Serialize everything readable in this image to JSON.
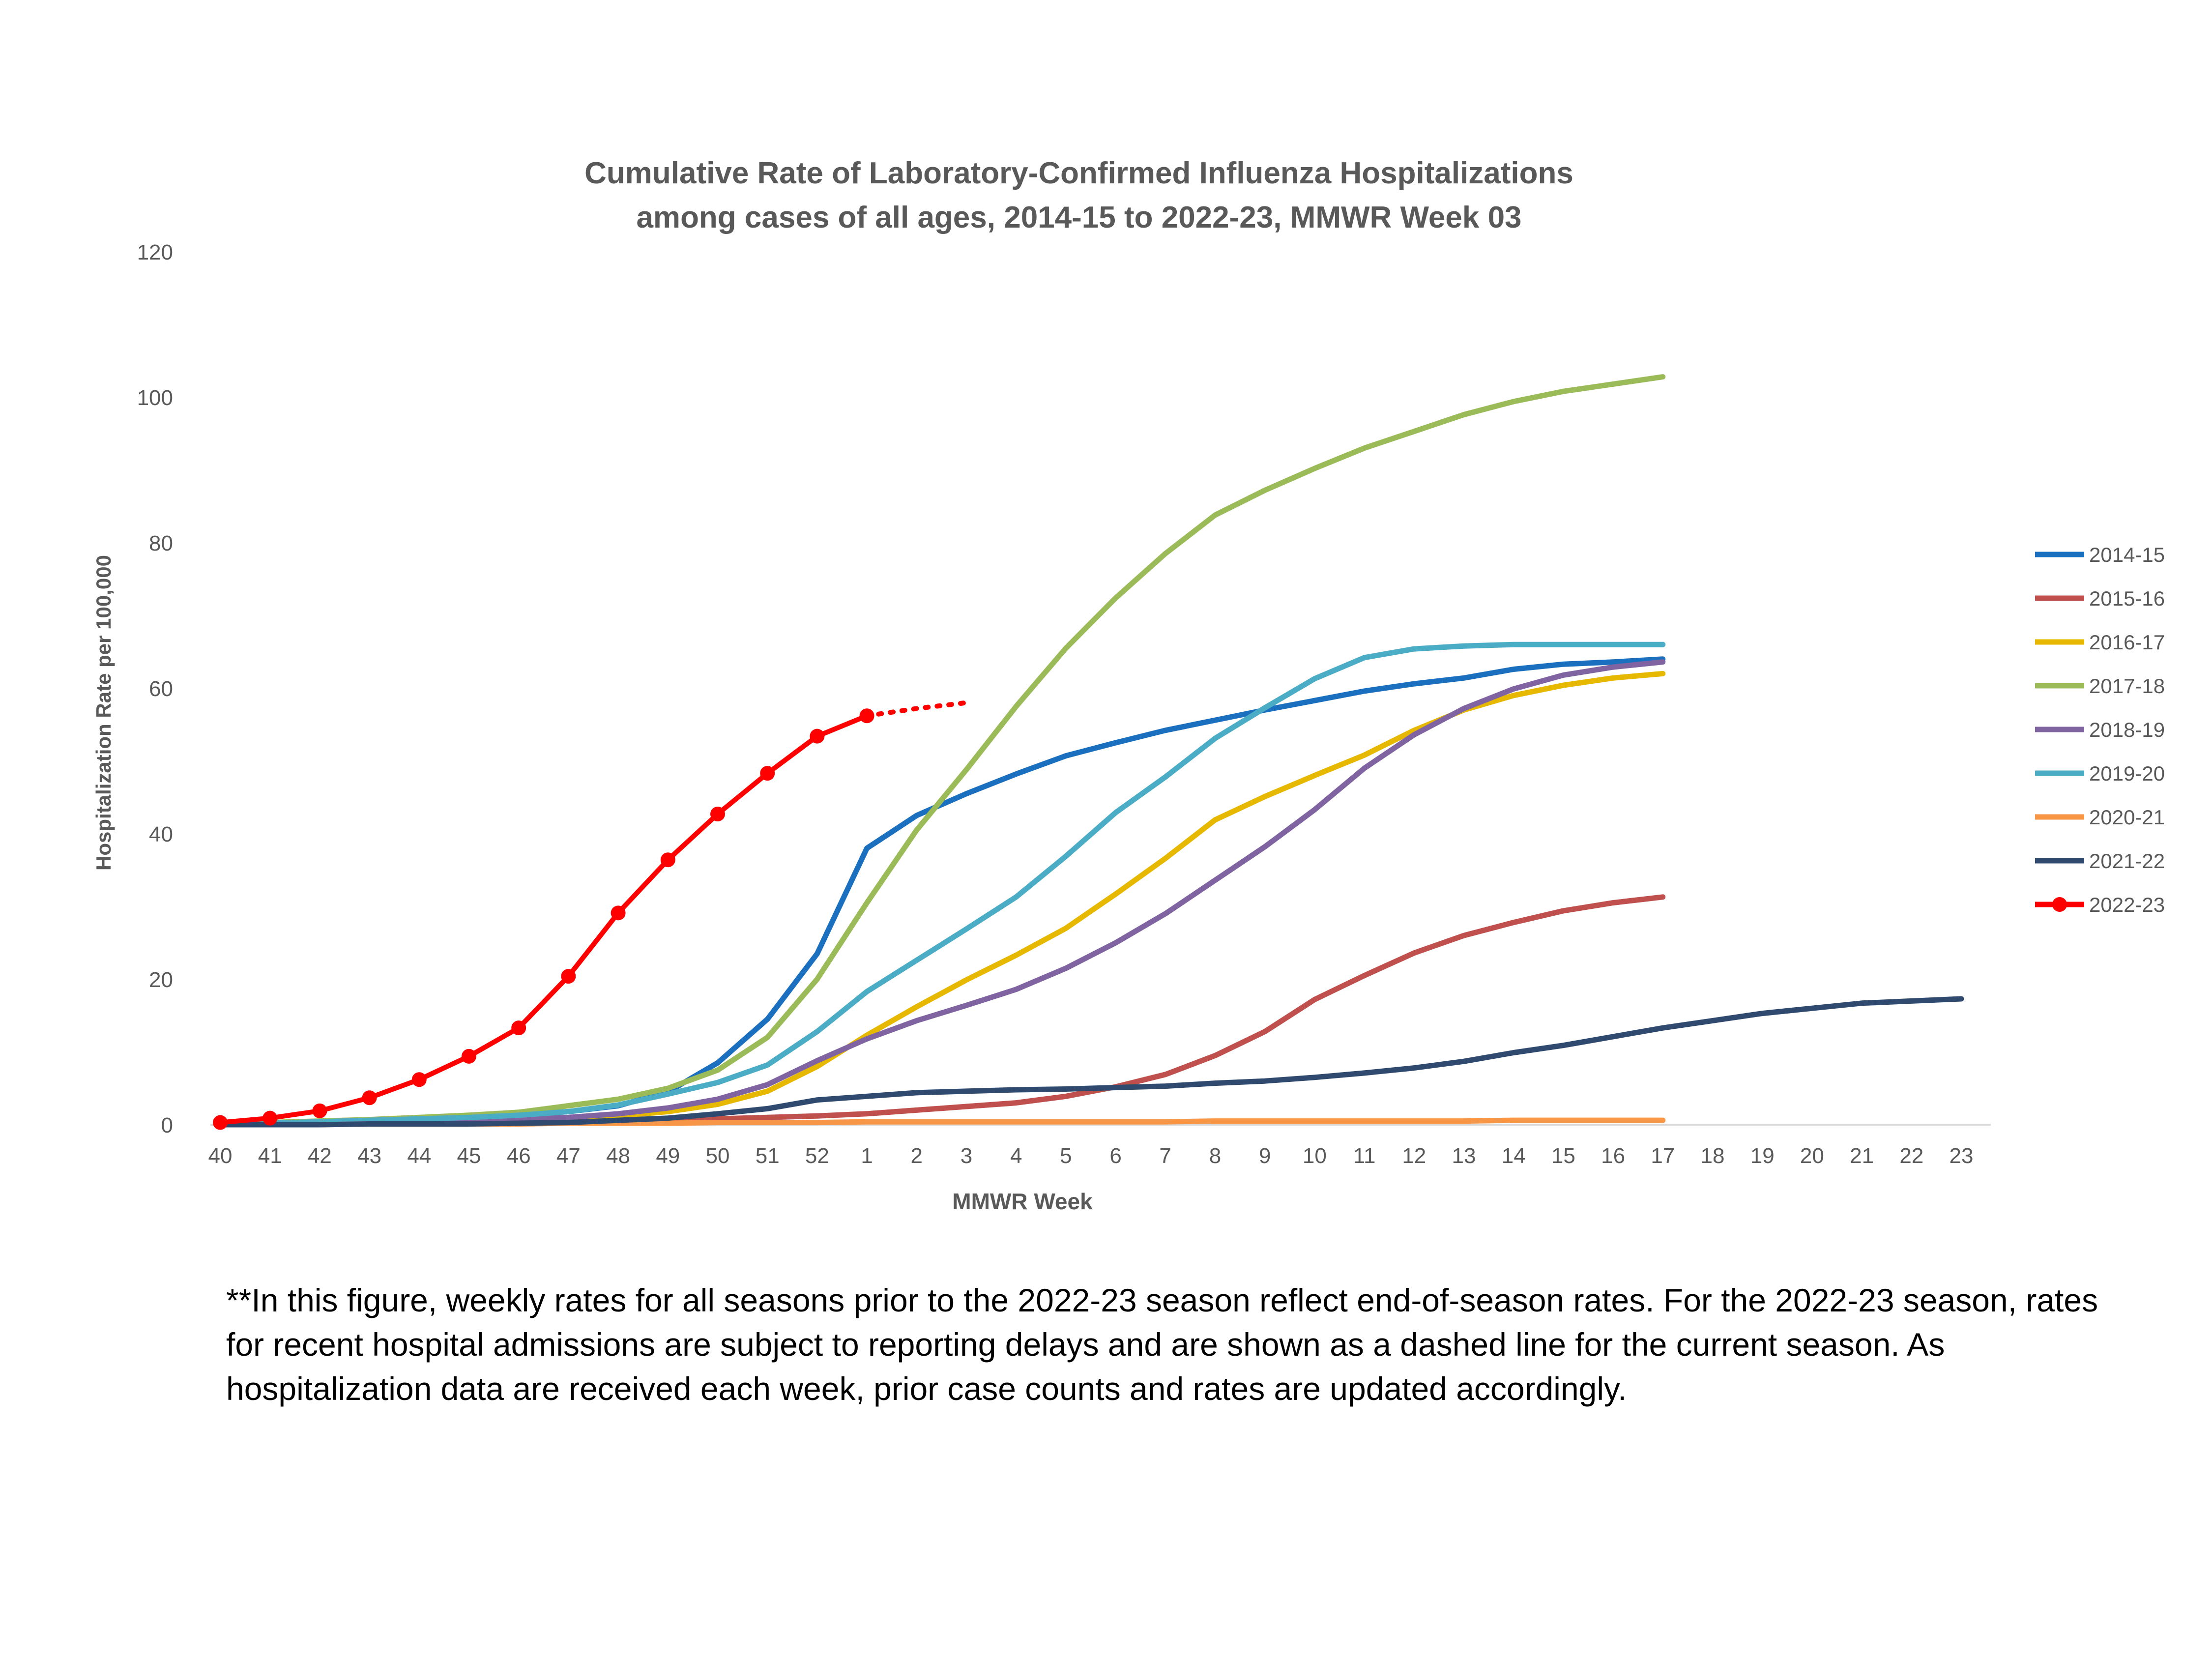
{
  "chart_data": {
    "type": "line",
    "title_lines": [
      "Cumulative Rate of Laboratory-Confirmed Influenza Hospitalizations",
      "among cases of all ages, 2014-15 to 2022-23, MMWR Week 03"
    ],
    "xlabel": "MMWR Week",
    "ylabel": "Hospitalization Rate per 100,000",
    "ylim": [
      0,
      120
    ],
    "yticks": [
      0,
      20,
      40,
      60,
      80,
      100,
      120
    ],
    "x": [
      "40",
      "41",
      "42",
      "43",
      "44",
      "45",
      "46",
      "47",
      "48",
      "49",
      "50",
      "51",
      "52",
      "1",
      "2",
      "3",
      "4",
      "5",
      "6",
      "7",
      "8",
      "9",
      "10",
      "11",
      "12",
      "13",
      "14",
      "15",
      "16",
      "17",
      "18",
      "19",
      "20",
      "21",
      "22",
      "23"
    ],
    "grid": false,
    "legend_position": "right",
    "series": [
      {
        "name": "2014-15",
        "color": "#1a6fbf",
        "values": [
          0.1,
          0.2,
          0.3,
          0.5,
          0.8,
          1.0,
          1.3,
          1.8,
          2.6,
          4.5,
          8.5,
          14.5,
          23.5,
          38.0,
          42.5,
          45.5,
          48.2,
          50.7,
          52.5,
          54.2,
          55.6,
          57.0,
          58.3,
          59.6,
          60.6,
          61.4,
          62.6,
          63.3,
          63.6,
          64.0,
          null,
          null,
          null,
          null,
          null,
          null
        ]
      },
      {
        "name": "2015-16",
        "color": "#c0504d",
        "values": [
          0.0,
          0.0,
          0.1,
          0.1,
          0.2,
          0.2,
          0.3,
          0.4,
          0.5,
          0.6,
          0.8,
          1.0,
          1.2,
          1.5,
          2.0,
          2.5,
          3.0,
          3.9,
          5.2,
          6.9,
          9.5,
          12.8,
          17.2,
          20.5,
          23.6,
          26.0,
          27.8,
          29.4,
          30.5,
          31.3,
          null,
          null,
          null,
          null,
          null,
          null
        ]
      },
      {
        "name": "2016-17",
        "color": "#e6b800",
        "values": [
          0.1,
          0.1,
          0.2,
          0.2,
          0.3,
          0.4,
          0.5,
          0.8,
          1.2,
          1.8,
          2.8,
          4.6,
          8.0,
          12.3,
          16.2,
          19.9,
          23.3,
          27.0,
          31.7,
          36.6,
          41.9,
          45.1,
          48.0,
          50.8,
          54.2,
          57.0,
          59.0,
          60.4,
          61.4,
          62.0,
          null,
          null,
          null,
          null,
          null,
          null
        ]
      },
      {
        "name": "2017-18",
        "color": "#9bbb59",
        "values": [
          0.2,
          0.3,
          0.5,
          0.7,
          1.0,
          1.3,
          1.7,
          2.6,
          3.5,
          5.0,
          7.5,
          12.0,
          20.0,
          30.5,
          40.5,
          48.8,
          57.5,
          65.5,
          72.4,
          78.5,
          83.8,
          87.2,
          90.2,
          93.0,
          95.3,
          97.6,
          99.4,
          100.8,
          101.8,
          102.8,
          null,
          null,
          null,
          null,
          null,
          null
        ]
      },
      {
        "name": "2018-19",
        "color": "#8064a2",
        "values": [
          0.1,
          0.1,
          0.2,
          0.3,
          0.4,
          0.5,
          0.7,
          1.0,
          1.5,
          2.3,
          3.5,
          5.5,
          8.8,
          11.8,
          14.3,
          16.4,
          18.6,
          21.5,
          25.0,
          29.0,
          33.6,
          38.2,
          43.3,
          49.0,
          53.6,
          57.2,
          59.9,
          61.8,
          62.9,
          63.6,
          null,
          null,
          null,
          null,
          null,
          null
        ]
      },
      {
        "name": "2019-20",
        "color": "#4bacc6",
        "values": [
          0.1,
          0.2,
          0.4,
          0.6,
          0.8,
          1.0,
          1.3,
          1.8,
          2.7,
          4.2,
          5.8,
          8.2,
          12.8,
          18.3,
          22.6,
          26.9,
          31.3,
          36.9,
          42.9,
          47.8,
          53.1,
          57.3,
          61.3,
          64.2,
          65.4,
          65.8,
          66.0,
          66.0,
          66.0,
          66.0,
          null,
          null,
          null,
          null,
          null,
          null
        ]
      },
      {
        "name": "2020-21",
        "color": "#f79646",
        "values": [
          0.0,
          0.0,
          0.0,
          0.1,
          0.1,
          0.1,
          0.1,
          0.2,
          0.2,
          0.2,
          0.3,
          0.3,
          0.3,
          0.4,
          0.4,
          0.4,
          0.4,
          0.4,
          0.4,
          0.4,
          0.5,
          0.5,
          0.5,
          0.5,
          0.5,
          0.5,
          0.6,
          0.6,
          0.6,
          0.6,
          null,
          null,
          null,
          null,
          null,
          null
        ]
      },
      {
        "name": "2021-22",
        "color": "#2f4a6e",
        "values": [
          0.0,
          0.0,
          0.0,
          0.1,
          0.1,
          0.1,
          0.2,
          0.3,
          0.6,
          0.9,
          1.5,
          2.2,
          3.4,
          3.9,
          4.4,
          4.6,
          4.8,
          4.9,
          5.1,
          5.3,
          5.7,
          6.0,
          6.5,
          7.1,
          7.8,
          8.7,
          9.9,
          10.9,
          12.1,
          13.3,
          14.3,
          15.3,
          16.0,
          16.7,
          17.0,
          17.3
        ]
      },
      {
        "name": "2022-23",
        "color": "#ff0000",
        "values": [
          0.3,
          0.9,
          1.9,
          3.7,
          6.2,
          9.4,
          13.3,
          20.4,
          29.1,
          36.4,
          42.7,
          48.3,
          53.4,
          56.2,
          null,
          null,
          null,
          null,
          null,
          null,
          null,
          null,
          null,
          null,
          null,
          null,
          null,
          null,
          null,
          null,
          null,
          null,
          null,
          null,
          null,
          null
        ],
        "provisional": {
          "x": [
            "1",
            "2",
            "3"
          ],
          "values": [
            56.2,
            57.2,
            58.0
          ]
        }
      }
    ]
  },
  "footnote": "**In this figure, weekly rates for all seasons prior to the 2022-23 season reflect end-of-season rates. For the 2022-23 season, rates for recent hospital admissions are subject to reporting delays and are shown as a dashed line for the current season. As hospitalization data are received each week, prior case counts and rates are updated accordingly."
}
